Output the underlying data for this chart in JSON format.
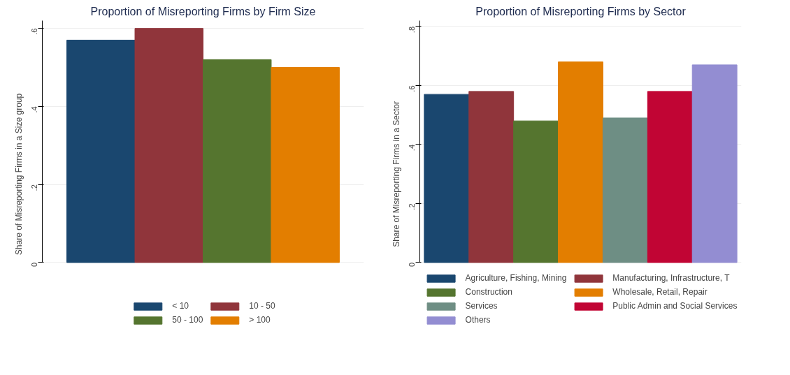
{
  "chart_data": [
    {
      "type": "bar",
      "title": "Proportion of Misreporting Firms by Firm Size",
      "ylabel": "Share of Misreporting Firms in a Size group",
      "categories": [
        null
      ],
      "series": [
        {
          "name": "< 10",
          "color": "#1a476f",
          "values": [
            0.57
          ]
        },
        {
          "name": "10 - 50",
          "color": "#90353b",
          "values": [
            0.6
          ]
        },
        {
          "name": "50 - 100",
          "color": "#55752f",
          "values": [
            0.52
          ]
        },
        {
          "name": "> 100",
          "color": "#e37e00",
          "values": [
            0.5
          ]
        }
      ],
      "ylim": [
        0,
        0.62
      ],
      "yticks": [
        {
          "value": 0,
          "label": "0"
        },
        {
          "value": 0.2,
          "label": ".2"
        },
        {
          "value": 0.4,
          "label": ".4"
        },
        {
          "value": 0.6,
          "label": ".6"
        }
      ],
      "grid": "y",
      "legend": "bottom",
      "tick_labels": "y"
    },
    {
      "type": "bar",
      "title": "Proportion of Misreporting Firms by Sector",
      "ylabel": "Share of Misreporting Firms in a Sector",
      "categories": [
        null
      ],
      "series": [
        {
          "name": "Agriculture, Fishing, Mining",
          "color": "#1a476f",
          "values": [
            0.57
          ]
        },
        {
          "name": "Manufacturing, Infrastructure, T",
          "color": "#90353b",
          "values": [
            0.58
          ]
        },
        {
          "name": "Construction",
          "color": "#55752f",
          "values": [
            0.48
          ]
        },
        {
          "name": "Wholesale, Retail, Repair",
          "color": "#e37e00",
          "values": [
            0.68
          ]
        },
        {
          "name": "Services",
          "color": "#6e8e84",
          "values": [
            0.49
          ]
        },
        {
          "name": "Public Admin and Social Services",
          "color": "#c10534",
          "values": [
            0.58
          ]
        },
        {
          "name": "Others",
          "color": "#938dd2",
          "values": [
            0.67
          ]
        }
      ],
      "ylim": [
        0,
        0.82
      ],
      "yticks": [
        {
          "value": 0,
          "label": "0"
        },
        {
          "value": 0.2,
          "label": ".2"
        },
        {
          "value": 0.4,
          "label": ".4"
        },
        {
          "value": 0.6,
          "label": ".6"
        },
        {
          "value": 0.8,
          "label": ".8"
        }
      ],
      "grid": "y",
      "legend": "bottom",
      "tick_labels": "y"
    }
  ]
}
